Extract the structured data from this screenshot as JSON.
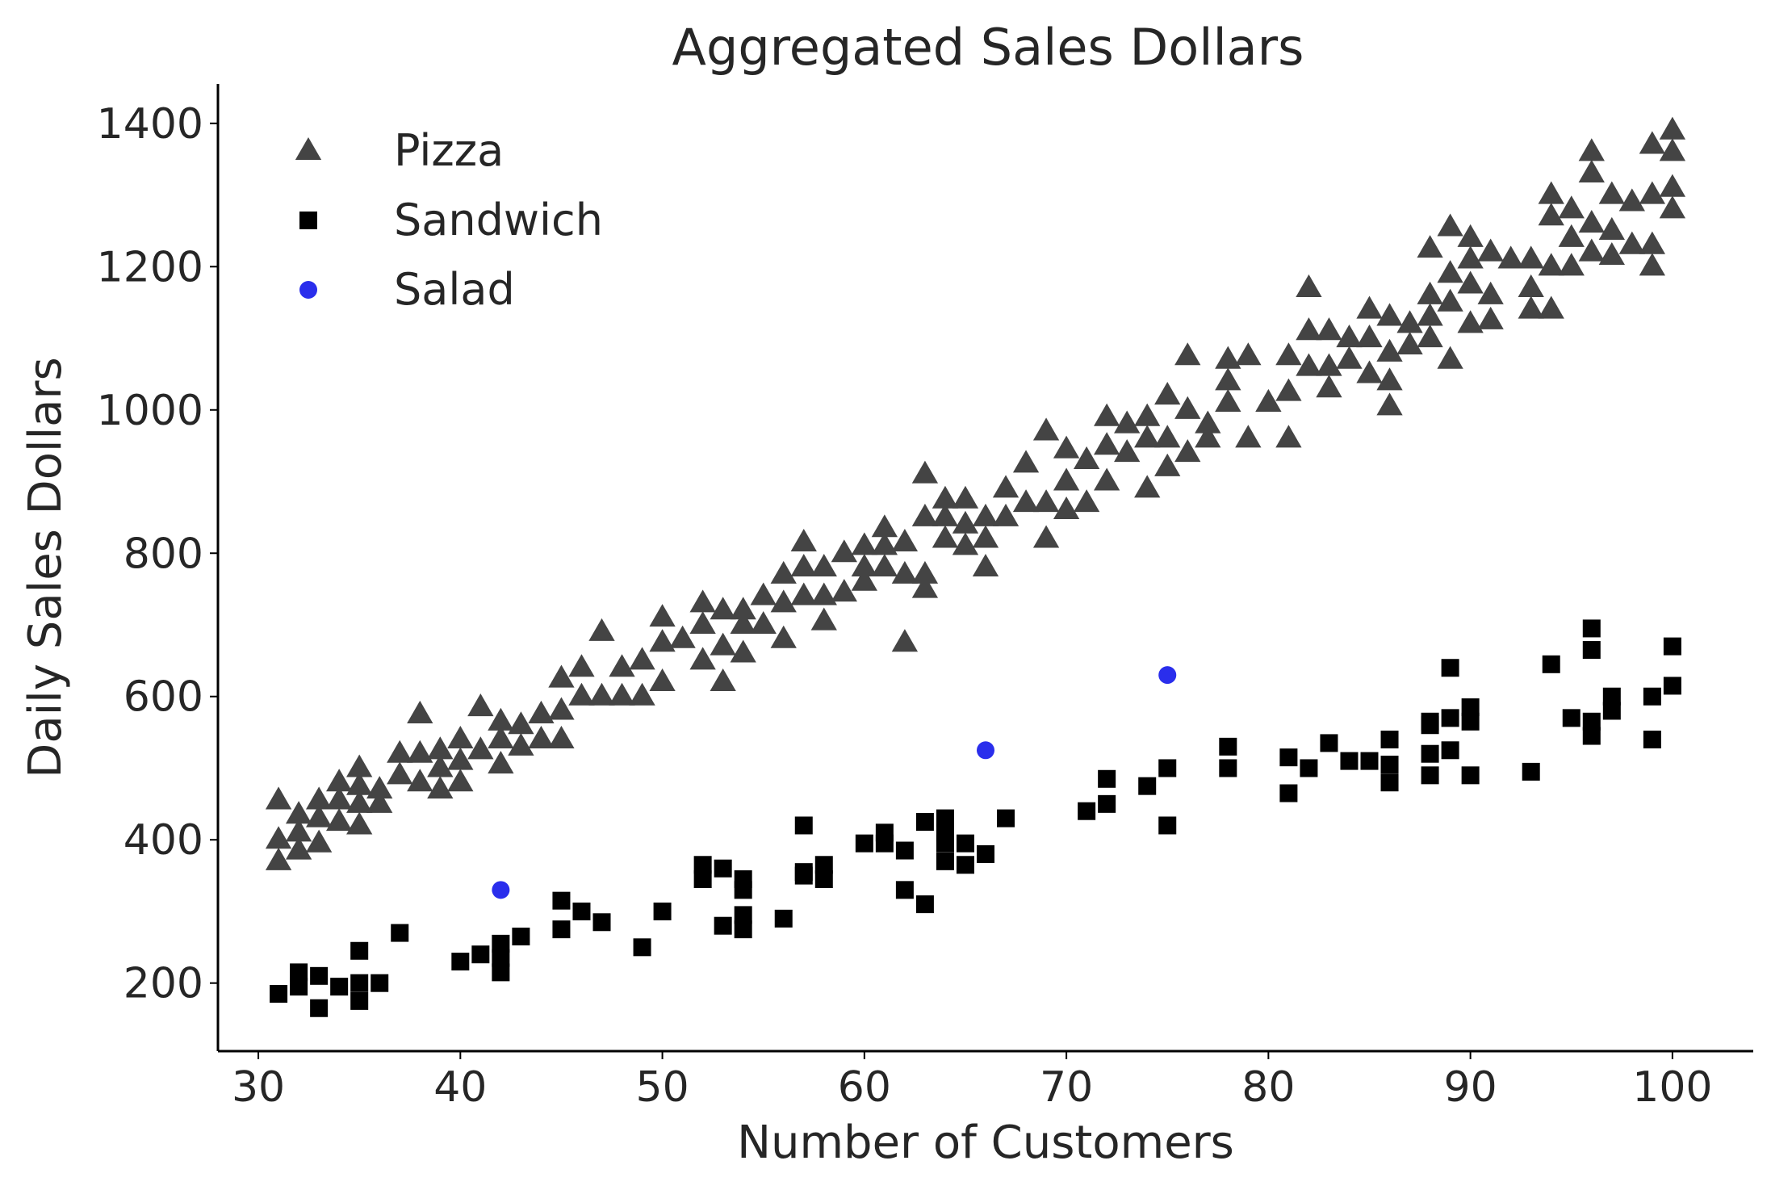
{
  "chart_data": {
    "type": "scatter",
    "title": "Aggregated Sales Dollars",
    "xlabel": "Number of Customers",
    "ylabel": "Daily Sales Dollars",
    "xlim": [
      28,
      104
    ],
    "ylim": [
      105,
      1455
    ],
    "xticks": [
      30,
      40,
      50,
      60,
      70,
      80,
      90,
      100
    ],
    "yticks": [
      200,
      400,
      600,
      800,
      1000,
      1200,
      1400
    ],
    "grid": false,
    "legend_position": "top-left",
    "series": [
      {
        "name": "Pizza",
        "marker": "triangle",
        "color": "#444444",
        "points": [
          [
            31,
            370
          ],
          [
            31,
            400
          ],
          [
            31,
            455
          ],
          [
            32,
            385
          ],
          [
            32,
            410
          ],
          [
            32,
            435
          ],
          [
            33,
            395
          ],
          [
            33,
            430
          ],
          [
            33,
            455
          ],
          [
            34,
            425
          ],
          [
            34,
            455
          ],
          [
            34,
            480
          ],
          [
            35,
            420
          ],
          [
            35,
            450
          ],
          [
            35,
            475
          ],
          [
            35,
            500
          ],
          [
            36,
            450
          ],
          [
            36,
            470
          ],
          [
            37,
            490
          ],
          [
            37,
            520
          ],
          [
            38,
            480
          ],
          [
            38,
            520
          ],
          [
            38,
            575
          ],
          [
            39,
            470
          ],
          [
            39,
            500
          ],
          [
            39,
            525
          ],
          [
            40,
            480
          ],
          [
            40,
            510
          ],
          [
            40,
            540
          ],
          [
            41,
            525
          ],
          [
            41,
            585
          ],
          [
            42,
            505
          ],
          [
            42,
            540
          ],
          [
            42,
            565
          ],
          [
            43,
            530
          ],
          [
            43,
            560
          ],
          [
            44,
            540
          ],
          [
            44,
            575
          ],
          [
            45,
            540
          ],
          [
            45,
            580
          ],
          [
            45,
            625
          ],
          [
            46,
            600
          ],
          [
            46,
            640
          ],
          [
            47,
            600
          ],
          [
            47,
            690
          ],
          [
            48,
            600
          ],
          [
            48,
            640
          ],
          [
            49,
            600
          ],
          [
            49,
            650
          ],
          [
            50,
            620
          ],
          [
            50,
            675
          ],
          [
            50,
            710
          ],
          [
            51,
            680
          ],
          [
            52,
            650
          ],
          [
            52,
            700
          ],
          [
            52,
            730
          ],
          [
            53,
            620
          ],
          [
            53,
            670
          ],
          [
            53,
            720
          ],
          [
            54,
            660
          ],
          [
            54,
            700
          ],
          [
            54,
            720
          ],
          [
            55,
            700
          ],
          [
            55,
            740
          ],
          [
            56,
            680
          ],
          [
            56,
            730
          ],
          [
            56,
            770
          ],
          [
            57,
            740
          ],
          [
            57,
            780
          ],
          [
            57,
            815
          ],
          [
            58,
            705
          ],
          [
            58,
            740
          ],
          [
            58,
            780
          ],
          [
            59,
            745
          ],
          [
            59,
            800
          ],
          [
            60,
            760
          ],
          [
            60,
            780
          ],
          [
            60,
            810
          ],
          [
            61,
            780
          ],
          [
            61,
            810
          ],
          [
            61,
            835
          ],
          [
            62,
            675
          ],
          [
            62,
            770
          ],
          [
            62,
            815
          ],
          [
            63,
            750
          ],
          [
            63,
            770
          ],
          [
            63,
            850
          ],
          [
            63,
            910
          ],
          [
            64,
            820
          ],
          [
            64,
            850
          ],
          [
            64,
            875
          ],
          [
            65,
            810
          ],
          [
            65,
            840
          ],
          [
            65,
            875
          ],
          [
            66,
            780
          ],
          [
            66,
            820
          ],
          [
            66,
            850
          ],
          [
            67,
            850
          ],
          [
            67,
            890
          ],
          [
            68,
            870
          ],
          [
            68,
            925
          ],
          [
            69,
            820
          ],
          [
            69,
            870
          ],
          [
            69,
            970
          ],
          [
            70,
            860
          ],
          [
            70,
            900
          ],
          [
            70,
            945
          ],
          [
            71,
            870
          ],
          [
            71,
            930
          ],
          [
            72,
            900
          ],
          [
            72,
            950
          ],
          [
            72,
            990
          ],
          [
            73,
            940
          ],
          [
            73,
            980
          ],
          [
            74,
            890
          ],
          [
            74,
            960
          ],
          [
            74,
            990
          ],
          [
            75,
            920
          ],
          [
            75,
            960
          ],
          [
            75,
            1020
          ],
          [
            76,
            940
          ],
          [
            76,
            1000
          ],
          [
            76,
            1075
          ],
          [
            77,
            960
          ],
          [
            77,
            980
          ],
          [
            78,
            1010
          ],
          [
            78,
            1040
          ],
          [
            78,
            1070
          ],
          [
            79,
            960
          ],
          [
            79,
            1075
          ],
          [
            80,
            1010
          ],
          [
            81,
            960
          ],
          [
            81,
            1025
          ],
          [
            81,
            1075
          ],
          [
            82,
            1060
          ],
          [
            82,
            1110
          ],
          [
            82,
            1170
          ],
          [
            83,
            1030
          ],
          [
            83,
            1060
          ],
          [
            83,
            1110
          ],
          [
            84,
            1070
          ],
          [
            84,
            1100
          ],
          [
            85,
            1050
          ],
          [
            85,
            1100
          ],
          [
            85,
            1140
          ],
          [
            86,
            1005
          ],
          [
            86,
            1040
          ],
          [
            86,
            1080
          ],
          [
            86,
            1130
          ],
          [
            87,
            1090
          ],
          [
            87,
            1120
          ],
          [
            88,
            1100
          ],
          [
            88,
            1130
          ],
          [
            88,
            1160
          ],
          [
            88,
            1225
          ],
          [
            89,
            1070
          ],
          [
            89,
            1150
          ],
          [
            89,
            1190
          ],
          [
            89,
            1255
          ],
          [
            90,
            1120
          ],
          [
            90,
            1175
          ],
          [
            90,
            1210
          ],
          [
            90,
            1240
          ],
          [
            91,
            1125
          ],
          [
            91,
            1160
          ],
          [
            91,
            1220
          ],
          [
            92,
            1210
          ],
          [
            93,
            1140
          ],
          [
            93,
            1170
          ],
          [
            93,
            1210
          ],
          [
            94,
            1140
          ],
          [
            94,
            1200
          ],
          [
            94,
            1270
          ],
          [
            94,
            1300
          ],
          [
            95,
            1200
          ],
          [
            95,
            1240
          ],
          [
            95,
            1280
          ],
          [
            96,
            1220
          ],
          [
            96,
            1260
          ],
          [
            96,
            1330
          ],
          [
            96,
            1360
          ],
          [
            97,
            1215
          ],
          [
            97,
            1250
          ],
          [
            97,
            1300
          ],
          [
            98,
            1230
          ],
          [
            98,
            1290
          ],
          [
            99,
            1200
          ],
          [
            99,
            1230
          ],
          [
            99,
            1300
          ],
          [
            99,
            1370
          ],
          [
            100,
            1280
          ],
          [
            100,
            1310
          ],
          [
            100,
            1360
          ],
          [
            100,
            1390
          ]
        ]
      },
      {
        "name": "Sandwich",
        "marker": "square",
        "color": "#000000",
        "points": [
          [
            31,
            185
          ],
          [
            32,
            195
          ],
          [
            32,
            215
          ],
          [
            33,
            165
          ],
          [
            33,
            210
          ],
          [
            34,
            195
          ],
          [
            35,
            175
          ],
          [
            35,
            200
          ],
          [
            35,
            245
          ],
          [
            36,
            200
          ],
          [
            37,
            270
          ],
          [
            40,
            230
          ],
          [
            41,
            240
          ],
          [
            42,
            215
          ],
          [
            42,
            235
          ],
          [
            42,
            255
          ],
          [
            43,
            265
          ],
          [
            45,
            275
          ],
          [
            45,
            315
          ],
          [
            46,
            300
          ],
          [
            47,
            285
          ],
          [
            49,
            250
          ],
          [
            50,
            300
          ],
          [
            52,
            345
          ],
          [
            52,
            365
          ],
          [
            53,
            360
          ],
          [
            53,
            280
          ],
          [
            54,
            275
          ],
          [
            54,
            295
          ],
          [
            54,
            330
          ],
          [
            54,
            345
          ],
          [
            56,
            290
          ],
          [
            57,
            350
          ],
          [
            57,
            355
          ],
          [
            57,
            420
          ],
          [
            58,
            345
          ],
          [
            58,
            365
          ],
          [
            60,
            395
          ],
          [
            61,
            395
          ],
          [
            61,
            410
          ],
          [
            62,
            330
          ],
          [
            62,
            385
          ],
          [
            63,
            310
          ],
          [
            63,
            425
          ],
          [
            64,
            370
          ],
          [
            64,
            395
          ],
          [
            64,
            410
          ],
          [
            64,
            430
          ],
          [
            65,
            365
          ],
          [
            65,
            395
          ],
          [
            66,
            380
          ],
          [
            67,
            430
          ],
          [
            71,
            440
          ],
          [
            72,
            450
          ],
          [
            72,
            485
          ],
          [
            74,
            475
          ],
          [
            75,
            420
          ],
          [
            75,
            500
          ],
          [
            78,
            500
          ],
          [
            78,
            530
          ],
          [
            81,
            465
          ],
          [
            81,
            515
          ],
          [
            82,
            500
          ],
          [
            83,
            535
          ],
          [
            84,
            510
          ],
          [
            85,
            510
          ],
          [
            86,
            480
          ],
          [
            86,
            505
          ],
          [
            86,
            540
          ],
          [
            88,
            490
          ],
          [
            88,
            520
          ],
          [
            88,
            560
          ],
          [
            88,
            565
          ],
          [
            89,
            525
          ],
          [
            89,
            570
          ],
          [
            89,
            640
          ],
          [
            90,
            490
          ],
          [
            90,
            565
          ],
          [
            90,
            585
          ],
          [
            93,
            495
          ],
          [
            94,
            645
          ],
          [
            95,
            570
          ],
          [
            96,
            545
          ],
          [
            96,
            565
          ],
          [
            96,
            665
          ],
          [
            96,
            695
          ],
          [
            97,
            580
          ],
          [
            97,
            600
          ],
          [
            99,
            540
          ],
          [
            99,
            600
          ],
          [
            100,
            615
          ],
          [
            100,
            670
          ]
        ]
      },
      {
        "name": "Salad",
        "marker": "circle",
        "color": "#2a2eec",
        "points": [
          [
            42,
            330
          ],
          [
            66,
            525
          ],
          [
            75,
            630
          ]
        ]
      }
    ]
  }
}
